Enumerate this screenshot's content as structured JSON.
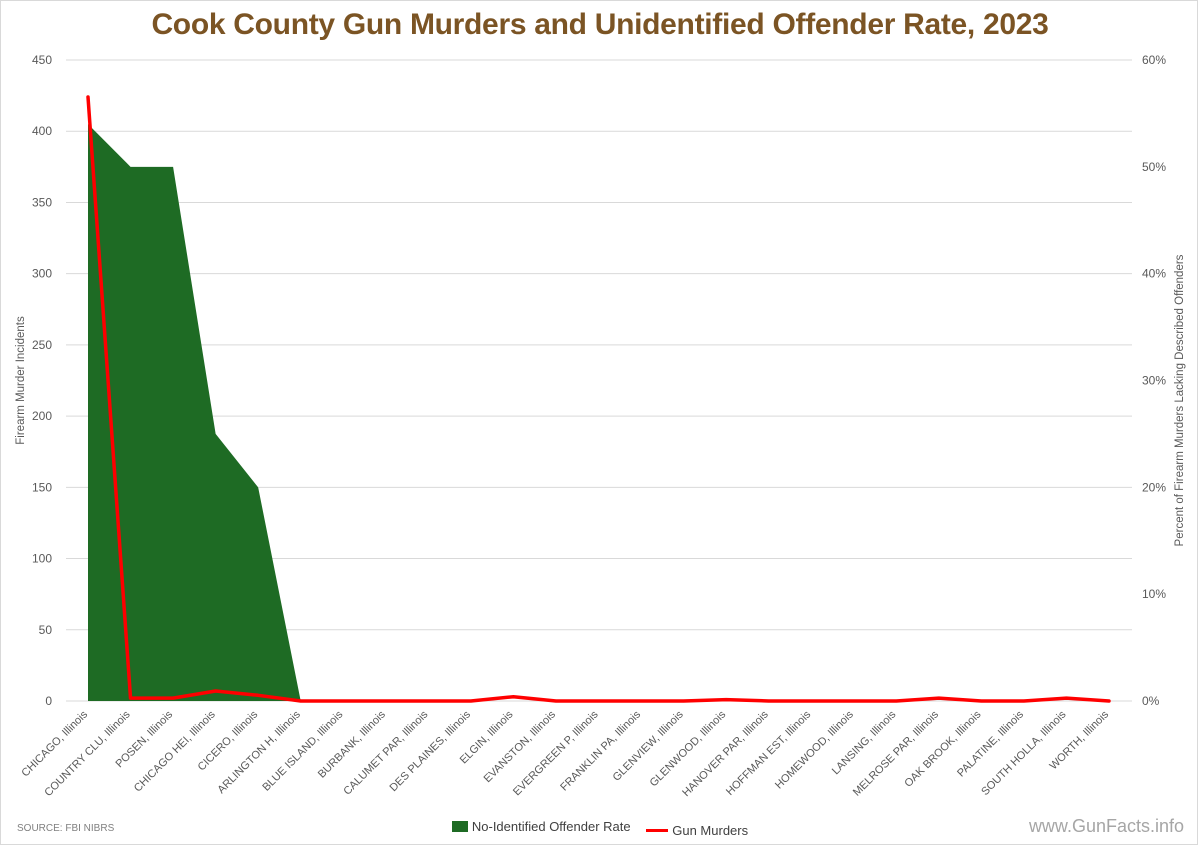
{
  "chart_data": {
    "type": "area",
    "title": "Cook County Gun Murders and Unidentified Offender Rate, 2023",
    "ylabel": "Firearm Murder Incidents",
    "y2label": "Percent of Firearm Murders Lacking Described Offenders",
    "ylim": [
      0,
      450
    ],
    "y2lim": [
      0,
      0.6
    ],
    "yticks": [
      "0",
      "50",
      "100",
      "150",
      "200",
      "250",
      "300",
      "350",
      "400",
      "450"
    ],
    "y2ticks": [
      "0%",
      "10%",
      "20%",
      "30%",
      "40%",
      "50%",
      "60%"
    ],
    "grid": true,
    "legend_position": "bottom",
    "categories": [
      "CHICAGO, Illinois",
      "COUNTRY CLU, Illinois",
      "POSEN, Illinois",
      "CHICAGO HEI, Illinois",
      "CICERO, Illinois",
      "ARLINGTON H, Illinois",
      "BLUE ISLAND, Illinois",
      "BURBANK, Illinois",
      "CALUMET PAR, Illinois",
      "DES PLAINES, Illinois",
      "ELGIN, Illinois",
      "EVANSTON, Illinois",
      "EVERGREEN P, Illinois",
      "FRANKLIN PA, Illinois",
      "GLENVIEW, Illinois",
      "GLENWOOD, Illinois",
      "HANOVER PAR, Illinois",
      "HOFFMAN EST, Illinois",
      "HOMEWOOD, Illinois",
      "LANSING, Illinois",
      "MELROSE PAR, Illinois",
      "OAK BROOK, Illinois",
      "PALATINE, Illinois",
      "SOUTH HOLLA, Illinois",
      "WORTH, Illinois"
    ],
    "series": [
      {
        "name": "No-Identified Offender Rate",
        "type": "area",
        "axis": "right",
        "color": "#1e6b24",
        "values": [
          0.54,
          0.5,
          0.5,
          0.25,
          0.2,
          0,
          0,
          0,
          0,
          0,
          0,
          0,
          0,
          0,
          0,
          0,
          0,
          0,
          0,
          0,
          0,
          0,
          0,
          0,
          0
        ]
      },
      {
        "name": "Gun Murders",
        "type": "line",
        "axis": "left",
        "color": "#ff0000",
        "values": [
          424,
          2,
          2,
          7,
          4,
          0,
          0,
          0,
          0,
          0,
          3,
          0,
          0,
          0,
          0,
          1,
          0,
          0,
          0,
          0,
          2,
          0,
          0,
          2,
          0
        ]
      }
    ]
  },
  "source_note": "SOURCE: FBI NIBRS",
  "watermark": "www.GunFacts.info"
}
